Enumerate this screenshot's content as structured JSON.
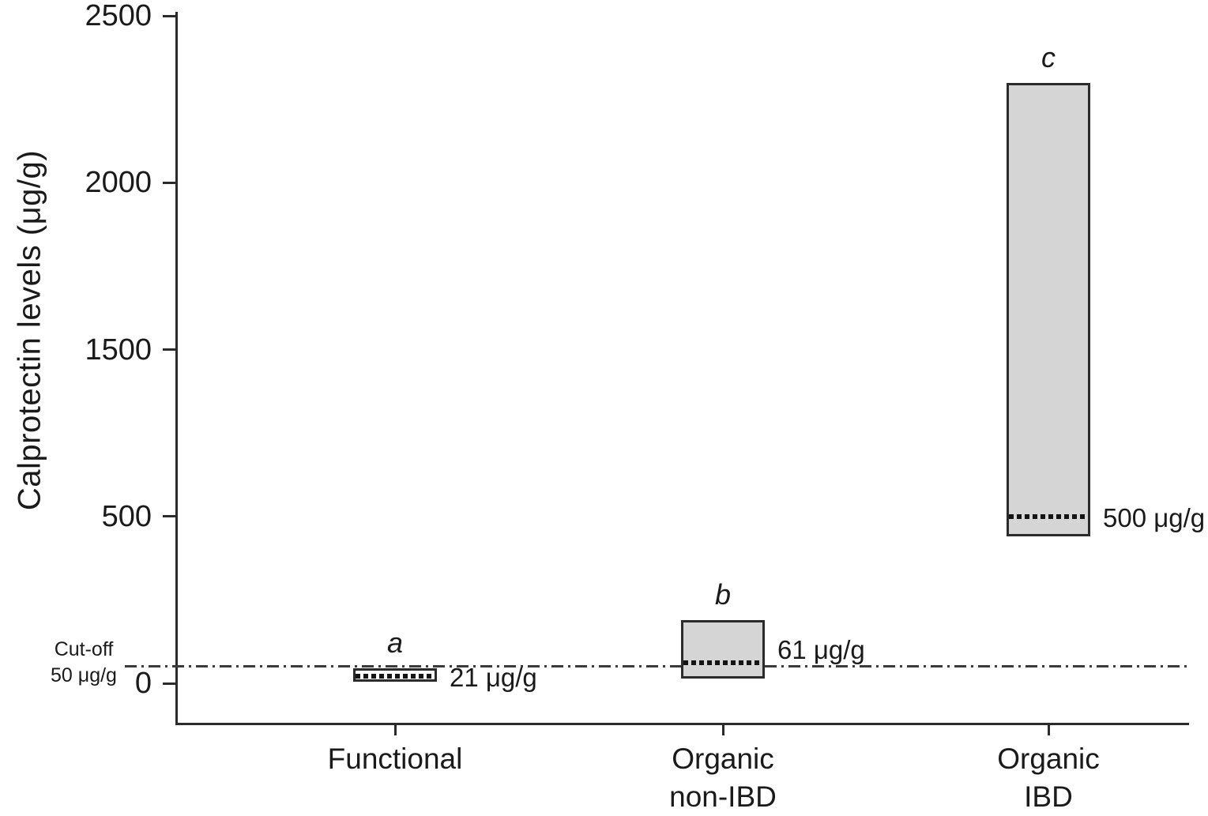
{
  "chart_data": {
    "type": "bar",
    "subtype": "floating range bars (min-max) with dotted median line",
    "title": "",
    "xlabel": "",
    "ylabel": "Calprotectin levels (μg/g)",
    "y_ticks": [
      0,
      500,
      1500,
      2000,
      2500
    ],
    "axis_note": "y tick labels evenly spaced on axis; 1000 not labeled (compressed scale)",
    "grid": false,
    "legend": null,
    "categories": [
      "Functional",
      "Organic non-IBD",
      "Organic IBD"
    ],
    "bars": [
      {
        "category": "Functional",
        "label_lines": [
          "Functional"
        ],
        "letter": "a",
        "range": [
          5,
          45
        ],
        "median": 21,
        "annotation": "21 μg/g",
        "fill": "#ffffff"
      },
      {
        "category": "Organic non-IBD",
        "label_lines": [
          "Organic",
          "non-IBD"
        ],
        "letter": "b",
        "range": [
          15,
          190
        ],
        "median": 61,
        "annotation": "61 μg/g",
        "fill": "#d5d5d5"
      },
      {
        "category": "Organic IBD",
        "label_lines": [
          "Organic",
          "IBD"
        ],
        "letter": "c",
        "range": [
          440,
          2300
        ],
        "median": 500,
        "annotation": "500 μg/g",
        "fill": "#d5d5d5"
      }
    ],
    "cutoff": {
      "value": 50,
      "label_line1": "Cut-off",
      "label_line2": "50 μg/g"
    },
    "colors": {
      "bar_border": "#2b2b2b",
      "median_line": "#141414",
      "cutoff_line": "#3a3a3a",
      "text": "#1a1a1a",
      "background": "#ffffff"
    }
  }
}
